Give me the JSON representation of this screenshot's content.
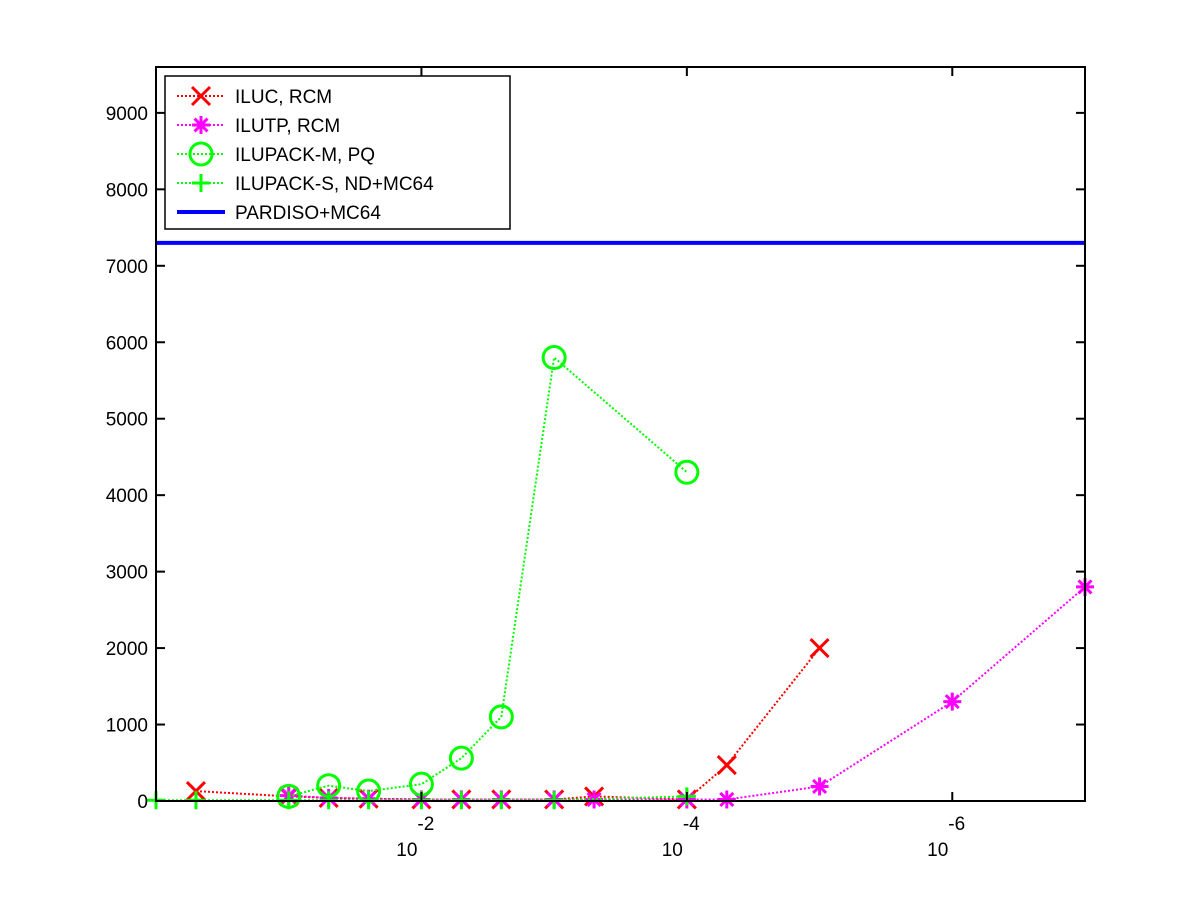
{
  "chart_data": {
    "type": "line",
    "x_scale": "log-reversed",
    "xlim": [
      1,
      1e-07
    ],
    "ylim": [
      0,
      9600
    ],
    "x_ticks": [
      {
        "value": 0.01,
        "base": "10",
        "exp": "-2"
      },
      {
        "value": 0.0001,
        "base": "10",
        "exp": "-4"
      },
      {
        "value": 1e-06,
        "base": "10",
        "exp": "-6"
      }
    ],
    "y_ticks": [
      0,
      1000,
      2000,
      3000,
      4000,
      5000,
      6000,
      7000,
      8000,
      9000
    ],
    "y_tick_labels": [
      "0",
      "1000",
      "2000",
      "3000",
      "4000",
      "5000",
      "6000",
      "7000",
      "8000",
      "9000"
    ],
    "legend_position": "top-left",
    "grid": false,
    "series": [
      {
        "name": "ILUC, RCM",
        "color": "#ff0000",
        "marker": "x",
        "line": "dotted",
        "x": [
          0.5,
          0.1,
          0.05,
          0.025,
          0.01,
          0.005,
          0.0025,
          0.001,
          0.0005,
          0.0001,
          5e-05,
          1e-05
        ],
        "y": [
          130,
          60,
          40,
          30,
          20,
          20,
          20,
          20,
          60,
          20,
          470,
          2000
        ]
      },
      {
        "name": "ILUTP, RCM",
        "color": "#ff00ff",
        "marker": "asterisk",
        "line": "dotted",
        "x": [
          0.1,
          0.05,
          0.025,
          0.01,
          0.005,
          0.0025,
          0.001,
          0.0005,
          0.0001,
          5e-05,
          1e-05,
          1e-06,
          1e-07
        ],
        "y": [
          70,
          40,
          30,
          20,
          20,
          20,
          20,
          20,
          20,
          20,
          190,
          1300,
          2800
        ]
      },
      {
        "name": "ILUPACK-M, PQ",
        "color": "#00ff00",
        "marker": "circle",
        "line": "dotted",
        "x": [
          0.1,
          0.05,
          0.025,
          0.01,
          0.005,
          0.0025,
          0.001,
          0.0001
        ],
        "y": [
          60,
          200,
          130,
          220,
          560,
          1100,
          5800,
          4300
        ]
      },
      {
        "name": "ILUPACK-S, ND+MC64",
        "color": "#00ff00",
        "marker": "plus",
        "line": "dotted",
        "x": [
          1,
          0.5,
          0.1,
          0.05,
          0.025,
          0.01,
          0.005,
          0.0025,
          0.001,
          0.0001
        ],
        "y": [
          10,
          10,
          10,
          10,
          10,
          10,
          10,
          10,
          10,
          60
        ]
      },
      {
        "name": "PARDISO+MC64",
        "color": "#0000ff",
        "marker": "none",
        "line": "solid",
        "x": [
          1,
          1e-07
        ],
        "y": [
          7300,
          7300
        ]
      }
    ]
  }
}
